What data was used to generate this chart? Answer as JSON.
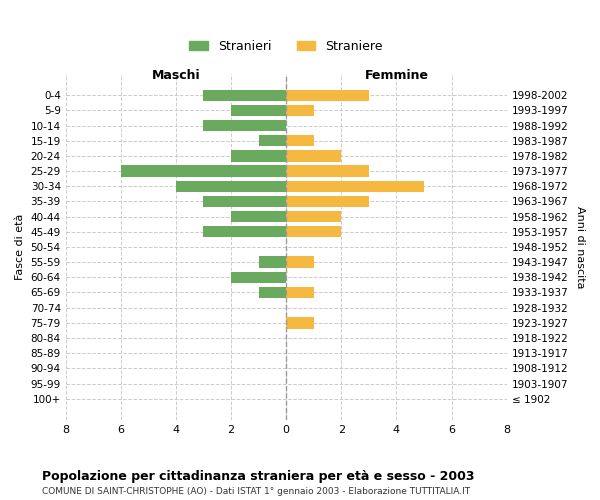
{
  "age_groups": [
    "100+",
    "95-99",
    "90-94",
    "85-89",
    "80-84",
    "75-79",
    "70-74",
    "65-69",
    "60-64",
    "55-59",
    "50-54",
    "45-49",
    "40-44",
    "35-39",
    "30-34",
    "25-29",
    "20-24",
    "15-19",
    "10-14",
    "5-9",
    "0-4"
  ],
  "birth_years": [
    "≤ 1902",
    "1903-1907",
    "1908-1912",
    "1913-1917",
    "1918-1922",
    "1923-1927",
    "1928-1932",
    "1933-1937",
    "1938-1942",
    "1943-1947",
    "1948-1952",
    "1953-1957",
    "1958-1962",
    "1963-1967",
    "1968-1972",
    "1973-1977",
    "1978-1982",
    "1983-1987",
    "1988-1992",
    "1993-1997",
    "1998-2002"
  ],
  "males": [
    0,
    0,
    0,
    0,
    0,
    0,
    0,
    1,
    2,
    1,
    0,
    3,
    2,
    3,
    4,
    6,
    2,
    1,
    3,
    2,
    3
  ],
  "females": [
    0,
    0,
    0,
    0,
    0,
    1,
    0,
    1,
    0,
    1,
    0,
    2,
    2,
    3,
    5,
    3,
    2,
    1,
    0,
    1,
    3
  ],
  "male_color": "#6aaa5e",
  "female_color": "#f5b942",
  "grid_color": "#cccccc",
  "center_line_color": "#999999",
  "title": "Popolazione per cittadinanza straniera per età e sesso - 2003",
  "subtitle": "COMUNE DI SAINT-CHRISTOPHE (AO) - Dati ISTAT 1° gennaio 2003 - Elaborazione TUTTITALIA.IT",
  "xlabel_left": "Maschi",
  "xlabel_right": "Femmine",
  "ylabel_left": "Fasce di età",
  "ylabel_right": "Anni di nascita",
  "legend_male": "Stranieri",
  "legend_female": "Straniere",
  "xlim": 8,
  "bg_color": "#ffffff"
}
